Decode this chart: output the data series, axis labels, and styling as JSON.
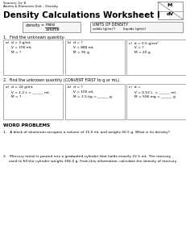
{
  "title_top1": "Science, Gr. 8",
  "title_top2": "Atoms & Elements Unit – Density",
  "title_main": "Density Calculations Worksheet I",
  "section1_label": "1.  Find the unknown quantity:",
  "s1a_1": "a)  d = 3 g/mL",
  "s1a_2": "     V = 100 mL",
  "s1a_3": "     M = ?",
  "s1b_1": "b)  d = ?",
  "s1b_2": "     V = 880 mL",
  "s1b_3": "     M = 95 g",
  "s1c_1": "c)  d = 0.5 g/cm³",
  "s1c_2": "     V = ?",
  "s1c_3": "     M = 20 g",
  "section2_label": "2.  Find the unknown quantity (CONVERT FIRST to g or mL)",
  "s2a_1": "a)  d = 24 g/mL",
  "s2a_2": "     V = 1.2 L = ______ mL",
  "s2a_3": "     M = ?",
  "s2b_1": "b)  d = ?",
  "s2b_2": "     V = 100 mL",
  "s2b_3": "     M = 1.5 kg = ______ g",
  "s2c_1": "c)  d =",
  "s2c_2": "     V = 0.52 L  = ______ mL",
  "s2c_3": "     M = 506 mg = ______ g",
  "word_problems_header": "WORD PROBLEMS",
  "wp1": "1.   A block of aluminum occupies a volume of 15.0 mL and weighs 40.5 g. What is its density?",
  "wp2a": "2.   Mercury metal is poured into a graduated cylinder that holds exactly 22.5 mL. The mercury",
  "wp2b": "     used to fill the cylinder weighs 306.0 g. From this information, calculate the density of mercury.",
  "formula_label": "density = ",
  "formula_num": "mass",
  "formula_den": "volume",
  "units_title": "UNITS OF DENSITY",
  "units_row": "solids (g/cm³)        liquids (g/mL)",
  "bg": "#ffffff"
}
